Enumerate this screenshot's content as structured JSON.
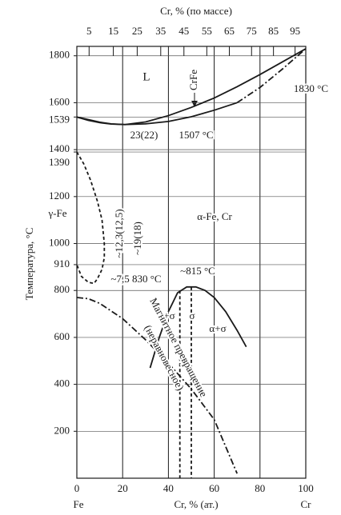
{
  "chart_data": {
    "type": "phase-diagram",
    "x2label": "Cr, % (по массе)",
    "xlabel": "Cr, % (ат.)",
    "ylabel": "Температура, °С",
    "x_ends": [
      "Fe",
      "Cr"
    ],
    "xlim": [
      0,
      100
    ],
    "ylim": [
      0,
      1840
    ],
    "xticks": [
      0,
      20,
      40,
      60,
      80,
      100
    ],
    "yticks": [
      1800,
      1600,
      1539,
      1400,
      1390,
      1200,
      1000,
      910,
      800,
      600,
      400,
      200
    ],
    "x2ticks": [
      5,
      15,
      25,
      35,
      45,
      55,
      65,
      75,
      85,
      95
    ],
    "grid": true,
    "series": [
      {
        "style": "solid",
        "color": "#1a1a1a",
        "x": [
          0,
          5,
          10,
          15,
          21,
          30,
          40,
          50,
          60,
          70,
          80,
          90,
          100
        ],
        "values": [
          1539,
          1528,
          1517,
          1510,
          1507,
          1518,
          1545,
          1580,
          1620,
          1668,
          1720,
          1775,
          1830
        ]
      },
      {
        "style": "solid",
        "color": "#1a1a1a",
        "x": [
          0,
          5,
          10,
          15,
          21,
          30,
          40,
          50,
          60,
          70
        ],
        "values": [
          1539,
          1525,
          1515,
          1509,
          1507,
          1510,
          1520,
          1540,
          1568,
          1600
        ]
      },
      {
        "style": "dashdot",
        "color": "#1a1a1a",
        "x": [
          70,
          80,
          90,
          100
        ],
        "values": [
          1600,
          1665,
          1745,
          1830
        ]
      },
      {
        "style": "dashed",
        "color": "#1a1a1a",
        "x": [
          0,
          3,
          6,
          9,
          11,
          12,
          12,
          11,
          9,
          7.5,
          5,
          2,
          0
        ],
        "values": [
          1390,
          1340,
          1270,
          1180,
          1100,
          1000,
          940,
          890,
          850,
          830,
          835,
          860,
          910
        ]
      },
      {
        "style": "solid",
        "color": "#1a1a1a",
        "x": [
          32,
          36,
          40,
          44,
          48,
          52,
          56,
          60,
          65,
          70,
          74
        ],
        "values": [
          470,
          600,
          710,
          790,
          815,
          815,
          800,
          770,
          710,
          630,
          560
        ]
      },
      {
        "style": "dashed",
        "color": "#1a1a1a",
        "x": [
          45,
          45
        ],
        "values": [
          800,
          0
        ]
      },
      {
        "style": "dashed",
        "color": "#1a1a1a",
        "x": [
          50,
          50
        ],
        "values": [
          815,
          0
        ]
      },
      {
        "style": "dashdot",
        "color": "#1a1a1a",
        "x": [
          0,
          5,
          10,
          20,
          30,
          40,
          50,
          60,
          70
        ],
        "values": [
          770,
          765,
          745,
          680,
          590,
          490,
          380,
          250,
          20
        ]
      }
    ],
    "annotations": [
      "L",
      "CrFe",
      "1830 °C",
      "23(22)",
      "1507 °C",
      "γ-Fe",
      "α-Fe, Cr",
      "~12,3(12,5)",
      "~19(18)",
      "~7,5 830 °C",
      "~815 °C",
      "α+σ",
      "σ",
      "α+σ",
      "Магнитное превращение",
      "(неравновесное)"
    ]
  }
}
